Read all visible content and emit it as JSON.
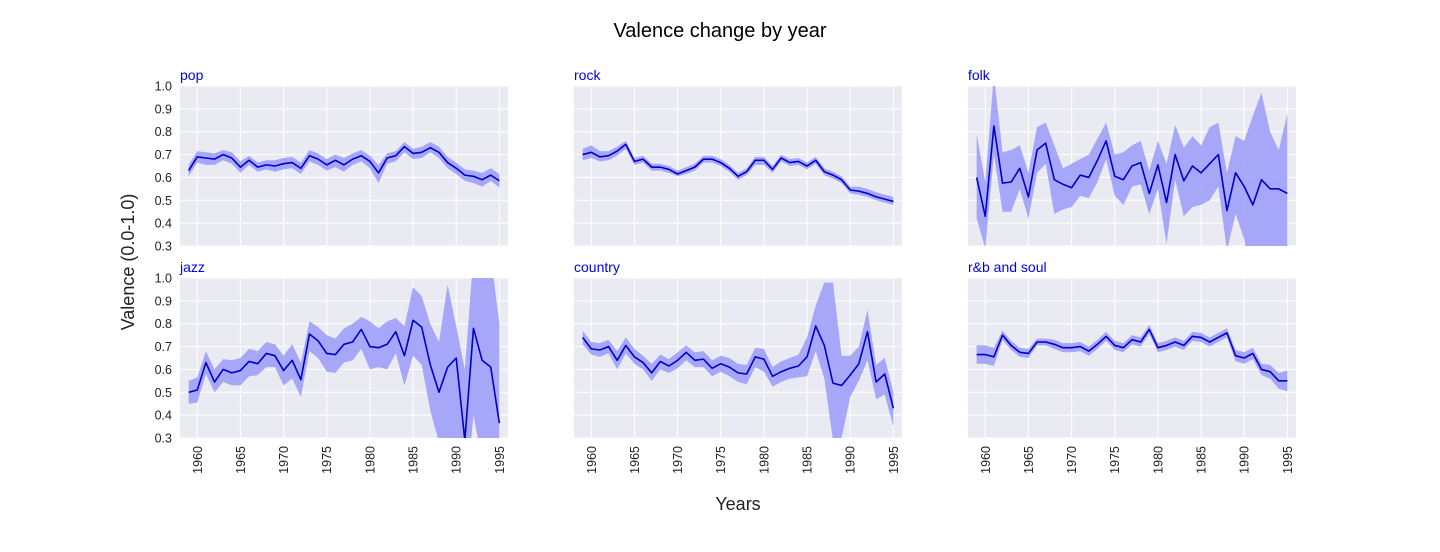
{
  "figure": {
    "title": "Valence change by year",
    "xlabel": "Years",
    "ylabel": "Valence (0.0-1.0)",
    "colors": {
      "line": "#0000cc",
      "band": "#a3a3fa",
      "plot_bg": "#eaeaf2",
      "grid": "#ffffff",
      "panel_title": "#0000ee"
    }
  },
  "chart_data": [
    {
      "type": "line",
      "title": "pop",
      "ylim": [
        0.3,
        1.0
      ],
      "xlim": [
        1958,
        1996
      ],
      "x_ticks": [
        1960,
        1965,
        1970,
        1975,
        1980,
        1985,
        1990,
        1995
      ],
      "y_ticks": [
        0.3,
        0.4,
        0.5,
        0.6,
        0.7,
        0.8,
        0.9,
        1.0
      ],
      "x": [
        1959,
        1960,
        1961,
        1962,
        1963,
        1964,
        1965,
        1966,
        1967,
        1968,
        1969,
        1970,
        1971,
        1972,
        1973,
        1974,
        1975,
        1976,
        1977,
        1978,
        1979,
        1980,
        1981,
        1982,
        1983,
        1984,
        1985,
        1986,
        1987,
        1988,
        1989,
        1990,
        1991,
        1992,
        1993,
        1994,
        1995
      ],
      "y": [
        0.63,
        0.69,
        0.685,
        0.68,
        0.7,
        0.685,
        0.645,
        0.675,
        0.645,
        0.655,
        0.65,
        0.66,
        0.665,
        0.64,
        0.695,
        0.68,
        0.655,
        0.675,
        0.655,
        0.68,
        0.695,
        0.67,
        0.62,
        0.685,
        0.695,
        0.735,
        0.705,
        0.71,
        0.73,
        0.71,
        0.665,
        0.64,
        0.61,
        0.605,
        0.59,
        0.61,
        0.585
      ],
      "lower": [
        0.605,
        0.665,
        0.655,
        0.655,
        0.675,
        0.66,
        0.62,
        0.655,
        0.625,
        0.635,
        0.625,
        0.635,
        0.64,
        0.615,
        0.67,
        0.655,
        0.63,
        0.645,
        0.625,
        0.655,
        0.67,
        0.64,
        0.575,
        0.66,
        0.67,
        0.71,
        0.68,
        0.685,
        0.71,
        0.685,
        0.64,
        0.615,
        0.585,
        0.575,
        0.56,
        0.585,
        0.555
      ],
      "upper": [
        0.655,
        0.715,
        0.71,
        0.705,
        0.72,
        0.71,
        0.67,
        0.695,
        0.665,
        0.675,
        0.675,
        0.685,
        0.69,
        0.665,
        0.72,
        0.705,
        0.68,
        0.7,
        0.685,
        0.705,
        0.72,
        0.695,
        0.655,
        0.705,
        0.715,
        0.755,
        0.725,
        0.735,
        0.755,
        0.735,
        0.69,
        0.665,
        0.635,
        0.63,
        0.62,
        0.64,
        0.615
      ]
    },
    {
      "type": "line",
      "title": "rock",
      "ylim": [
        0.3,
        1.0
      ],
      "xlim": [
        1958,
        1996
      ],
      "x_ticks": [
        1960,
        1965,
        1970,
        1975,
        1980,
        1985,
        1990,
        1995
      ],
      "y_ticks": [
        0.3,
        0.4,
        0.5,
        0.6,
        0.7,
        0.8,
        0.9,
        1.0
      ],
      "x": [
        1959,
        1960,
        1961,
        1962,
        1963,
        1964,
        1965,
        1966,
        1967,
        1968,
        1969,
        1970,
        1971,
        1972,
        1973,
        1974,
        1975,
        1976,
        1977,
        1978,
        1979,
        1980,
        1981,
        1982,
        1983,
        1984,
        1985,
        1986,
        1987,
        1988,
        1989,
        1990,
        1991,
        1992,
        1993,
        1994,
        1995
      ],
      "y": [
        0.7,
        0.71,
        0.69,
        0.695,
        0.715,
        0.745,
        0.67,
        0.68,
        0.645,
        0.645,
        0.635,
        0.615,
        0.63,
        0.645,
        0.68,
        0.68,
        0.665,
        0.64,
        0.605,
        0.625,
        0.675,
        0.675,
        0.635,
        0.685,
        0.665,
        0.67,
        0.65,
        0.675,
        0.625,
        0.61,
        0.59,
        0.545,
        0.54,
        0.53,
        0.515,
        0.505,
        0.495
      ],
      "lower": [
        0.675,
        0.685,
        0.67,
        0.675,
        0.695,
        0.725,
        0.655,
        0.665,
        0.63,
        0.63,
        0.62,
        0.605,
        0.615,
        0.63,
        0.665,
        0.665,
        0.65,
        0.625,
        0.59,
        0.61,
        0.655,
        0.655,
        0.62,
        0.67,
        0.65,
        0.655,
        0.635,
        0.66,
        0.61,
        0.595,
        0.575,
        0.53,
        0.525,
        0.515,
        0.5,
        0.49,
        0.48
      ],
      "upper": [
        0.725,
        0.74,
        0.715,
        0.715,
        0.735,
        0.76,
        0.685,
        0.695,
        0.66,
        0.66,
        0.65,
        0.63,
        0.645,
        0.66,
        0.695,
        0.695,
        0.68,
        0.655,
        0.62,
        0.64,
        0.69,
        0.69,
        0.65,
        0.7,
        0.68,
        0.685,
        0.665,
        0.69,
        0.64,
        0.625,
        0.605,
        0.56,
        0.56,
        0.55,
        0.535,
        0.525,
        0.515
      ]
    },
    {
      "type": "line",
      "title": "folk",
      "ylim": [
        0.3,
        1.0
      ],
      "xlim": [
        1958,
        1996
      ],
      "x_ticks": [
        1960,
        1965,
        1970,
        1975,
        1980,
        1985,
        1990,
        1995
      ],
      "y_ticks": [
        0.3,
        0.4,
        0.5,
        0.6,
        0.7,
        0.8,
        0.9,
        1.0
      ],
      "x": [
        1959,
        1960,
        1961,
        1962,
        1963,
        1964,
        1965,
        1966,
        1967,
        1968,
        1969,
        1970,
        1971,
        1972,
        1973,
        1974,
        1975,
        1976,
        1977,
        1978,
        1979,
        1980,
        1981,
        1982,
        1983,
        1984,
        1985,
        1986,
        1987,
        1988,
        1989,
        1990,
        1991,
        1992,
        1993,
        1994,
        1995
      ],
      "y": [
        0.6,
        0.43,
        0.825,
        0.575,
        0.58,
        0.64,
        0.515,
        0.72,
        0.75,
        0.59,
        0.57,
        0.555,
        0.61,
        0.6,
        0.675,
        0.76,
        0.605,
        0.59,
        0.65,
        0.665,
        0.53,
        0.655,
        0.49,
        0.7,
        0.585,
        0.65,
        0.62,
        0.66,
        0.7,
        0.455,
        0.62,
        0.56,
        0.48,
        0.59,
        0.55,
        0.55,
        0.53
      ],
      "lower": [
        0.42,
        0.29,
        0.7,
        0.45,
        0.45,
        0.55,
        0.42,
        0.62,
        0.66,
        0.44,
        0.46,
        0.47,
        0.52,
        0.51,
        0.58,
        0.68,
        0.52,
        0.48,
        0.56,
        0.57,
        0.44,
        0.55,
        0.31,
        0.59,
        0.43,
        0.47,
        0.48,
        0.5,
        0.56,
        0.28,
        0.44,
        0.33,
        0.1,
        0.18,
        0.25,
        0.28,
        0.18
      ],
      "upper": [
        0.79,
        0.58,
        1.05,
        0.71,
        0.72,
        0.74,
        0.62,
        0.82,
        0.84,
        0.74,
        0.64,
        0.66,
        0.68,
        0.7,
        0.77,
        0.84,
        0.7,
        0.71,
        0.74,
        0.76,
        0.63,
        0.76,
        0.66,
        0.83,
        0.73,
        0.78,
        0.74,
        0.82,
        0.84,
        0.62,
        0.78,
        0.76,
        0.87,
        0.97,
        0.8,
        0.72,
        0.88
      ]
    },
    {
      "type": "line",
      "title": "jazz",
      "ylim": [
        0.3,
        1.0
      ],
      "xlim": [
        1958,
        1996
      ],
      "x_ticks": [
        1960,
        1965,
        1970,
        1975,
        1980,
        1985,
        1990,
        1995
      ],
      "y_ticks": [
        0.3,
        0.4,
        0.5,
        0.6,
        0.7,
        0.8,
        0.9,
        1.0
      ],
      "x": [
        1959,
        1960,
        1961,
        1962,
        1963,
        1964,
        1965,
        1966,
        1967,
        1968,
        1969,
        1970,
        1971,
        1972,
        1973,
        1974,
        1975,
        1976,
        1977,
        1978,
        1979,
        1980,
        1981,
        1982,
        1983,
        1984,
        1985,
        1986,
        1987,
        1988,
        1989,
        1990,
        1991,
        1992,
        1993,
        1994,
        1995
      ],
      "y": [
        0.5,
        0.51,
        0.63,
        0.545,
        0.6,
        0.585,
        0.595,
        0.635,
        0.625,
        0.67,
        0.66,
        0.595,
        0.64,
        0.555,
        0.755,
        0.725,
        0.67,
        0.665,
        0.71,
        0.72,
        0.775,
        0.7,
        0.695,
        0.71,
        0.765,
        0.66,
        0.815,
        0.785,
        0.62,
        0.5,
        0.61,
        0.65,
        0.29,
        0.78,
        0.64,
        0.61,
        0.365
      ],
      "lower": [
        0.45,
        0.455,
        0.58,
        0.5,
        0.545,
        0.53,
        0.53,
        0.57,
        0.575,
        0.61,
        0.61,
        0.53,
        0.56,
        0.48,
        0.68,
        0.65,
        0.59,
        0.585,
        0.63,
        0.64,
        0.69,
        0.6,
        0.61,
        0.6,
        0.67,
        0.53,
        0.66,
        0.62,
        0.42,
        0.28,
        0.24,
        0.25,
        0.0,
        0.4,
        0.2,
        0.1,
        0.0
      ],
      "upper": [
        0.55,
        0.565,
        0.68,
        0.6,
        0.645,
        0.64,
        0.65,
        0.69,
        0.68,
        0.72,
        0.71,
        0.66,
        0.71,
        0.63,
        0.81,
        0.785,
        0.75,
        0.735,
        0.78,
        0.8,
        0.83,
        0.81,
        0.78,
        0.81,
        0.825,
        0.79,
        0.96,
        0.92,
        0.8,
        0.72,
        0.97,
        0.79,
        0.6,
        1.1,
        1.1,
        1.1,
        0.8
      ]
    },
    {
      "type": "line",
      "title": "country",
      "ylim": [
        0.3,
        1.0
      ],
      "xlim": [
        1958,
        1996
      ],
      "x_ticks": [
        1960,
        1965,
        1970,
        1975,
        1980,
        1985,
        1990,
        1995
      ],
      "y_ticks": [
        0.3,
        0.4,
        0.5,
        0.6,
        0.7,
        0.8,
        0.9,
        1.0
      ],
      "x": [
        1959,
        1960,
        1961,
        1962,
        1963,
        1964,
        1965,
        1966,
        1967,
        1968,
        1969,
        1970,
        1971,
        1972,
        1973,
        1974,
        1975,
        1976,
        1977,
        1978,
        1979,
        1980,
        1981,
        1982,
        1983,
        1984,
        1985,
        1986,
        1987,
        1988,
        1989,
        1990,
        1991,
        1992,
        1993,
        1994,
        1995
      ],
      "y": [
        0.74,
        0.69,
        0.685,
        0.7,
        0.64,
        0.705,
        0.655,
        0.63,
        0.585,
        0.635,
        0.615,
        0.64,
        0.675,
        0.64,
        0.645,
        0.605,
        0.625,
        0.61,
        0.585,
        0.58,
        0.655,
        0.645,
        0.57,
        0.59,
        0.605,
        0.615,
        0.655,
        0.79,
        0.705,
        0.54,
        0.53,
        0.575,
        0.625,
        0.765,
        0.545,
        0.58,
        0.43
      ],
      "lower": [
        0.71,
        0.665,
        0.655,
        0.67,
        0.6,
        0.67,
        0.625,
        0.6,
        0.55,
        0.6,
        0.585,
        0.605,
        0.64,
        0.61,
        0.61,
        0.57,
        0.59,
        0.57,
        0.545,
        0.535,
        0.61,
        0.59,
        0.525,
        0.545,
        0.56,
        0.565,
        0.57,
        0.68,
        0.56,
        0.29,
        0.3,
        0.48,
        0.55,
        0.64,
        0.47,
        0.49,
        0.35
      ],
      "upper": [
        0.77,
        0.72,
        0.715,
        0.73,
        0.68,
        0.74,
        0.69,
        0.66,
        0.625,
        0.665,
        0.645,
        0.675,
        0.705,
        0.675,
        0.68,
        0.64,
        0.66,
        0.65,
        0.625,
        0.62,
        0.695,
        0.69,
        0.61,
        0.635,
        0.65,
        0.665,
        0.74,
        0.88,
        0.98,
        0.98,
        0.66,
        0.66,
        0.7,
        0.86,
        0.62,
        0.65,
        0.5
      ]
    },
    {
      "type": "line",
      "title": "r&b and soul",
      "ylim": [
        0.3,
        1.0
      ],
      "xlim": [
        1958,
        1996
      ],
      "x_ticks": [
        1960,
        1965,
        1970,
        1975,
        1980,
        1985,
        1990,
        1995
      ],
      "y_ticks": [
        0.3,
        0.4,
        0.5,
        0.6,
        0.7,
        0.8,
        0.9,
        1.0
      ],
      "x": [
        1959,
        1960,
        1961,
        1962,
        1963,
        1964,
        1965,
        1966,
        1967,
        1968,
        1969,
        1970,
        1971,
        1972,
        1973,
        1974,
        1975,
        1976,
        1977,
        1978,
        1979,
        1980,
        1981,
        1982,
        1983,
        1984,
        1985,
        1986,
        1987,
        1988,
        1989,
        1990,
        1991,
        1992,
        1993,
        1994,
        1995
      ],
      "y": [
        0.665,
        0.665,
        0.655,
        0.75,
        0.705,
        0.675,
        0.67,
        0.72,
        0.72,
        0.71,
        0.695,
        0.695,
        0.7,
        0.68,
        0.71,
        0.745,
        0.705,
        0.695,
        0.73,
        0.72,
        0.775,
        0.695,
        0.705,
        0.72,
        0.705,
        0.745,
        0.74,
        0.72,
        0.74,
        0.76,
        0.66,
        0.65,
        0.67,
        0.6,
        0.59,
        0.55,
        0.55
      ],
      "lower": [
        0.625,
        0.625,
        0.615,
        0.73,
        0.685,
        0.655,
        0.65,
        0.705,
        0.705,
        0.69,
        0.675,
        0.675,
        0.68,
        0.66,
        0.69,
        0.725,
        0.685,
        0.675,
        0.71,
        0.7,
        0.755,
        0.675,
        0.685,
        0.7,
        0.685,
        0.725,
        0.72,
        0.7,
        0.72,
        0.74,
        0.635,
        0.625,
        0.645,
        0.575,
        0.56,
        0.515,
        0.505
      ],
      "upper": [
        0.705,
        0.705,
        0.695,
        0.77,
        0.725,
        0.695,
        0.69,
        0.735,
        0.735,
        0.73,
        0.715,
        0.715,
        0.72,
        0.7,
        0.73,
        0.765,
        0.725,
        0.715,
        0.75,
        0.74,
        0.795,
        0.715,
        0.725,
        0.74,
        0.725,
        0.765,
        0.76,
        0.74,
        0.76,
        0.78,
        0.685,
        0.675,
        0.695,
        0.625,
        0.62,
        0.585,
        0.595
      ]
    }
  ]
}
